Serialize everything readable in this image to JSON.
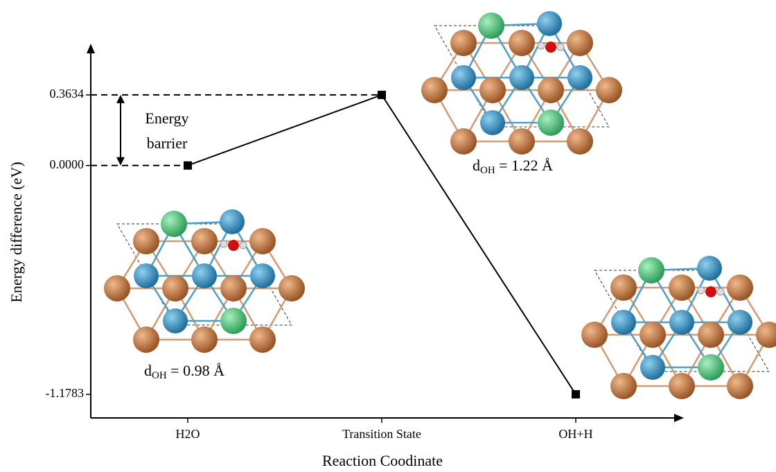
{
  "chart_data": {
    "type": "line",
    "categories": [
      "H2O",
      "Transition State",
      "OH+H"
    ],
    "values": [
      0,
      0.3634,
      -1.1783
    ],
    "color": "#000000",
    "ylim": [
      -1.3,
      0.62
    ],
    "yticks": [
      -1.1783,
      {
        "value": 0,
        "label": "0.0000"
      },
      0.3634
    ],
    "y_label": "Energy difference (eV)",
    "x_label": "Reaction Coodinate",
    "annotations": [
      {
        "lines": [
          "Energy",
          "barrier"
        ]
      },
      {
        "symbol": "d",
        "subscript": "OH",
        "text": " = 0.98 Å"
      },
      {
        "symbol": "d",
        "subscript": "OH",
        "text": " = 1.22 Å"
      }
    ]
  }
}
